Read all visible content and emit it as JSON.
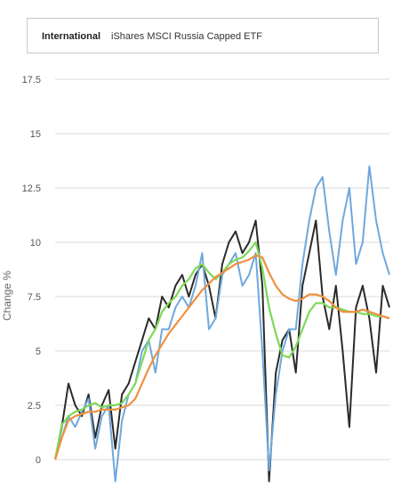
{
  "header": {
    "category": "International",
    "fund_name": "iShares MSCI Russia Capped ETF"
  },
  "chart_data": {
    "type": "line",
    "ylabel": "Change %",
    "xlabel": "",
    "ylim": [
      -1.5,
      17.5
    ],
    "yticks": [
      "17.5",
      "15",
      "12.5",
      "10",
      "7.5",
      "5",
      "2.5",
      "0"
    ],
    "grid": true,
    "x": [
      0,
      2,
      4,
      6,
      8,
      10,
      12,
      14,
      16,
      18,
      20,
      22,
      24,
      26,
      28,
      30,
      32,
      34,
      36,
      38,
      40,
      42,
      44,
      46,
      48,
      50,
      52,
      54,
      56,
      58,
      60,
      62,
      64,
      66,
      68,
      70,
      72,
      74,
      76,
      78,
      80,
      82,
      84,
      86,
      88,
      90,
      92,
      94,
      96,
      98,
      100
    ],
    "series": [
      {
        "name": "",
        "color": "#2b2b2b",
        "values": [
          0.0,
          1.5,
          3.5,
          2.5,
          2.0,
          3.0,
          1.0,
          2.5,
          3.2,
          0.5,
          3.0,
          3.5,
          4.5,
          5.5,
          6.5,
          6.0,
          7.5,
          7.0,
          8.0,
          8.5,
          7.5,
          8.5,
          9.0,
          8.0,
          6.5,
          9.0,
          10.0,
          10.5,
          9.5,
          10.0,
          11.0,
          8.0,
          -1.0,
          4.0,
          5.5,
          6.0,
          4.0,
          8.0,
          9.5,
          11.0,
          7.5,
          6.0,
          8.0,
          5.0,
          1.5,
          7.0,
          8.0,
          6.5,
          4.0,
          8.0,
          7.0
        ]
      },
      {
        "name": "",
        "color": "#6fa8dc",
        "values": [
          0.0,
          1.0,
          2.0,
          1.5,
          2.2,
          2.8,
          0.5,
          2.0,
          2.5,
          -1.0,
          1.8,
          3.0,
          3.5,
          5.0,
          5.5,
          4.0,
          6.0,
          6.0,
          7.0,
          7.5,
          7.0,
          8.0,
          9.5,
          6.0,
          6.5,
          8.5,
          9.0,
          9.5,
          8.0,
          8.5,
          9.5,
          5.0,
          -0.5,
          3.0,
          5.0,
          6.0,
          6.0,
          9.0,
          11.0,
          12.5,
          13.0,
          10.5,
          8.5,
          11.0,
          12.5,
          9.0,
          10.0,
          13.5,
          11.0,
          9.5,
          8.5
        ]
      },
      {
        "name": "",
        "color": "#7ed957",
        "values": [
          0.0,
          1.6,
          2.0,
          2.2,
          2.3,
          2.5,
          2.6,
          2.4,
          2.5,
          2.5,
          2.6,
          3.0,
          3.5,
          4.5,
          5.5,
          6.0,
          6.8,
          7.2,
          7.5,
          8.0,
          8.3,
          8.8,
          9.0,
          8.6,
          8.3,
          8.6,
          9.0,
          9.2,
          9.3,
          9.6,
          10.0,
          8.8,
          7.0,
          5.8,
          4.8,
          4.7,
          5.2,
          6.0,
          6.8,
          7.2,
          7.2,
          7.0,
          7.0,
          6.9,
          6.8,
          6.8,
          6.7,
          6.7,
          6.6,
          6.6,
          6.5
        ]
      },
      {
        "name": "",
        "color": "#f0903e",
        "values": [
          0.0,
          1.0,
          1.8,
          2.0,
          2.1,
          2.2,
          2.2,
          2.3,
          2.3,
          2.3,
          2.4,
          2.5,
          2.8,
          3.5,
          4.2,
          4.8,
          5.3,
          5.8,
          6.2,
          6.6,
          7.0,
          7.4,
          7.8,
          8.1,
          8.4,
          8.6,
          8.8,
          9.0,
          9.1,
          9.2,
          9.4,
          9.3,
          8.6,
          8.0,
          7.6,
          7.4,
          7.3,
          7.4,
          7.6,
          7.6,
          7.5,
          7.3,
          7.0,
          6.8,
          6.8,
          6.8,
          6.9,
          6.8,
          6.7,
          6.6,
          6.5
        ]
      }
    ]
  }
}
